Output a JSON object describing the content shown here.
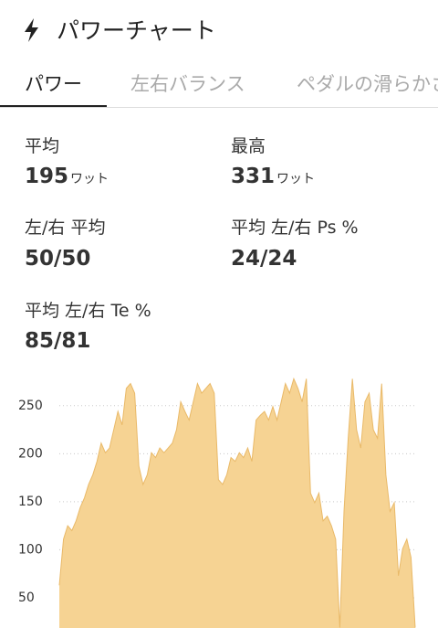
{
  "header": {
    "title": "パワーチャート"
  },
  "tabs": [
    "パワー",
    "左右バランス",
    "ペダルの滑らかさ"
  ],
  "stats": [
    {
      "label": "平均",
      "value": "195",
      "unit": "ワット"
    },
    {
      "label": "最高",
      "value": "331",
      "unit": "ワット"
    },
    {
      "label": "左/右 平均",
      "value": "50/50"
    },
    {
      "label": "平均 左/右 Ps %",
      "value": "24/24"
    },
    {
      "label": "平均 左/右 Te %",
      "value": "85/81"
    }
  ],
  "chart_data": {
    "type": "area",
    "color": "#f6d393",
    "line_color": "#e9b968",
    "ylim": [
      0,
      285
    ],
    "yticks": [
      50,
      100,
      150,
      200,
      250
    ],
    "grid": true,
    "values": [
      63,
      111,
      125,
      120,
      130,
      144,
      154,
      168,
      178,
      192,
      211,
      201,
      206,
      225,
      244,
      230,
      268,
      273,
      263,
      187,
      168,
      178,
      201,
      196,
      206,
      201,
      206,
      211,
      225,
      254,
      244,
      235,
      254,
      273,
      263,
      268,
      273,
      263,
      173,
      168,
      178,
      196,
      192,
      201,
      196,
      206,
      192,
      235,
      240,
      244,
      235,
      249,
      235,
      254,
      273,
      263,
      278,
      268,
      254,
      278,
      159,
      149,
      159,
      130,
      135,
      125,
      111,
      19,
      140,
      216,
      278,
      225,
      206,
      254,
      263,
      225,
      216,
      273,
      178,
      140,
      149,
      73,
      101,
      111,
      92,
      19
    ]
  }
}
